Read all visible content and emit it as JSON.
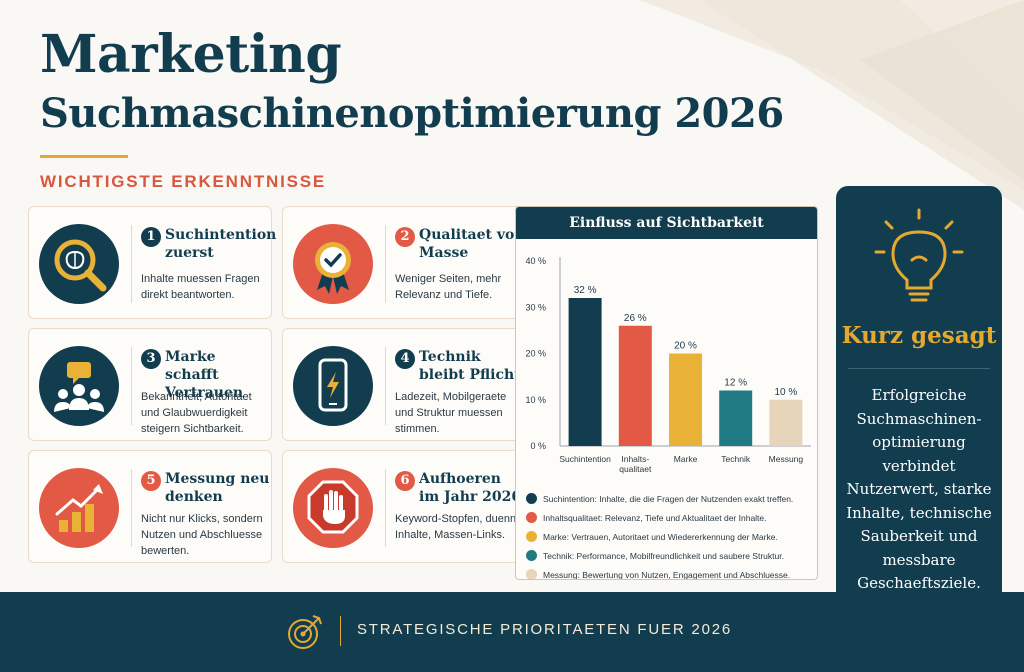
{
  "header": {
    "title_line1": "Marketing",
    "title_line2": "Suchmaschinenoptimierung 2026",
    "subheading": "WICHTIGSTE ERKENNTNISSE"
  },
  "cards": [
    {
      "number": "1",
      "title": "Suchintention zuerst",
      "description": "Inhalte muessen Fragen direkt beantworten.",
      "icon": "magnifier-brain-icon"
    },
    {
      "number": "2",
      "title": "Qualitaet vor Masse",
      "description": "Weniger Seiten, mehr Relevanz und Tiefe.",
      "icon": "award-ribbon-icon"
    },
    {
      "number": "3",
      "title": "Marke schafft Vertrauen",
      "description": "Bekanntheit, Autoritaet und Glaubwuerdigkeit steigern Sichtbarkeit.",
      "icon": "audience-chat-icon"
    },
    {
      "number": "4",
      "title": "Technik bleibt Pflicht",
      "description": "Ladezeit, Mobilgeraete und Struktur muessen stimmen.",
      "icon": "smartphone-lightning-icon"
    },
    {
      "number": "5",
      "title": "Messung neu denken",
      "description": "Nicht nur Klicks, sondern Nutzen und Abschluesse bewerten.",
      "icon": "growth-chart-icon"
    },
    {
      "number": "6",
      "title": "Aufhoeren im Jahr 2026",
      "description": "Keyword-Stopfen, duenne Inhalte, Massen-Links.",
      "icon": "stop-hand-icon"
    }
  ],
  "chart_data": {
    "type": "bar",
    "title": "Einfluss auf Sichtbarkeit",
    "categories": [
      "Suchintention",
      "Inhalts-\nqualitaet",
      "Marke",
      "Technik",
      "Messung"
    ],
    "values": [
      32,
      26,
      20,
      12,
      10
    ],
    "value_labels": [
      "32 %",
      "26 %",
      "20 %",
      "12 %",
      "10 %"
    ],
    "colors": [
      "#123d4f",
      "#e25a45",
      "#e9b237",
      "#1f7a84",
      "#e6d5bb"
    ],
    "yticks": [
      "0 %",
      "10 %",
      "20 %",
      "30 %",
      "40 %"
    ],
    "ylim": [
      0,
      40
    ],
    "grid": false,
    "legend_position": "bottom",
    "legend": [
      "Suchintention: Inhalte, die die Fragen der Nutzenden exakt treffen.",
      "Inhaltsqualitaet: Relevanz, Tiefe und Aktualitaet der Inhalte.",
      "Marke: Vertrauen, Autoritaet und Wiedererkennung der Marke.",
      "Technik: Performance, Mobilfreundlichkeit und saubere Struktur.",
      "Messung: Bewertung von Nutzen, Engagement und Abschluesse."
    ]
  },
  "side_panel": {
    "title": "Kurz gesagt",
    "text": "Erfolgreiche Suchmaschinen-optimierung verbindet Nutzerwert, starke Inhalte, technische Sauberkeit und messbare Geschaeftsziele.",
    "icon": "lightbulb-icon"
  },
  "footer": {
    "text": "STRATEGISCHE PRIORITAETEN FUER 2026",
    "icon": "target-arrow-icon"
  },
  "colors": {
    "navy": "#123d4f",
    "gold": "#e5a830",
    "coral": "#e25a45",
    "teal": "#1f7a84",
    "beige": "#e6d5bb"
  }
}
